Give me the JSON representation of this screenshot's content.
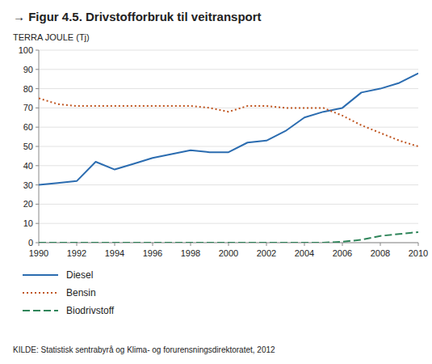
{
  "chart_data": {
    "type": "line",
    "title": "→ Figur 4.5. Drivstofforbruk til veitransport",
    "y_label": "TERRA JOULE (Tj)",
    "source": "KILDE: Statistisk sentrabyrå og Klima- og forurensningsdirektoratet, 2012",
    "x": [
      1990,
      1991,
      1992,
      1993,
      1994,
      1995,
      1996,
      1997,
      1998,
      1999,
      2000,
      2001,
      2002,
      2003,
      2004,
      2005,
      2006,
      2007,
      2008,
      2009,
      2010
    ],
    "series": [
      {
        "name": "Diesel",
        "color": "#2b6cb0",
        "line_style": "solid",
        "values": [
          30,
          31,
          32,
          42,
          38,
          41,
          44,
          46,
          48,
          47,
          47,
          52,
          53,
          58,
          65,
          68,
          70,
          78,
          80,
          83,
          88
        ]
      },
      {
        "name": "Bensin",
        "color": "#c05621",
        "line_style": "dotted",
        "values": [
          75,
          72,
          71,
          71,
          71,
          71,
          71,
          71,
          71,
          70,
          68,
          71,
          71,
          70,
          70,
          70,
          66,
          61,
          57,
          53,
          50
        ]
      },
      {
        "name": "Biodrivstoff",
        "color": "#2f855a",
        "line_style": "dashed",
        "values": [
          0,
          0,
          0,
          0,
          0,
          0,
          0,
          0,
          0,
          0,
          0,
          0,
          0,
          0,
          0,
          0,
          0.5,
          1.5,
          3.5,
          4.5,
          5.5
        ]
      }
    ],
    "xlim": [
      1990,
      2010
    ],
    "xticks": [
      1990,
      1992,
      1994,
      1996,
      1998,
      2000,
      2002,
      2004,
      2006,
      2008,
      2010
    ],
    "ylim": [
      0,
      100
    ],
    "yticks": [
      0,
      10,
      20,
      30,
      40,
      50,
      60,
      70,
      80,
      90,
      100
    ],
    "grid": true,
    "legend": "bottom"
  }
}
